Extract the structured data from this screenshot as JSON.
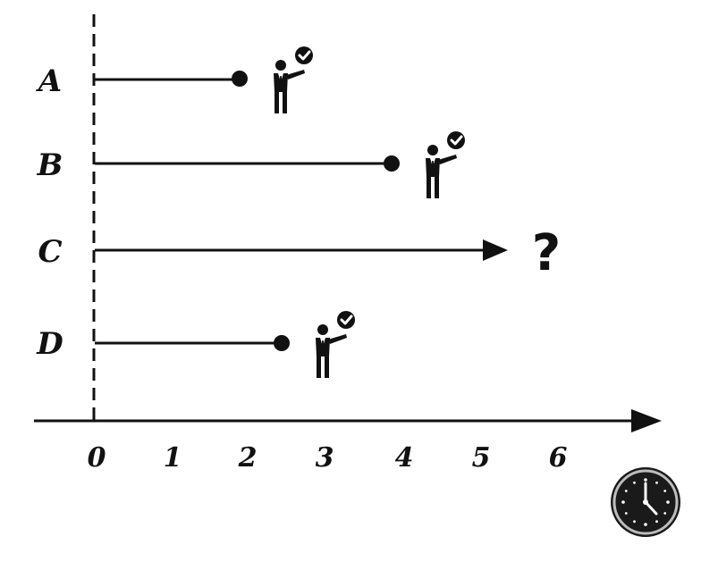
{
  "diagram": {
    "rows": [
      {
        "label": "A",
        "end": 1.9,
        "outcome": "completed"
      },
      {
        "label": "B",
        "end": 3.85,
        "outcome": "completed"
      },
      {
        "label": "C",
        "end": 5.3,
        "outcome": "unknown",
        "outcome_symbol": "?"
      },
      {
        "label": "D",
        "end": 2.45,
        "outcome": "completed"
      }
    ],
    "time_axis": {
      "ticks": [
        "0",
        "1",
        "2",
        "3",
        "4",
        "5",
        "6"
      ],
      "icon": "clock-icon"
    },
    "completed_icon": "person-checkmark-icon",
    "colors": {
      "ink": "#111111",
      "clock_face": "#1a1a1a",
      "clock_ring": "#bdbdbd"
    }
  }
}
